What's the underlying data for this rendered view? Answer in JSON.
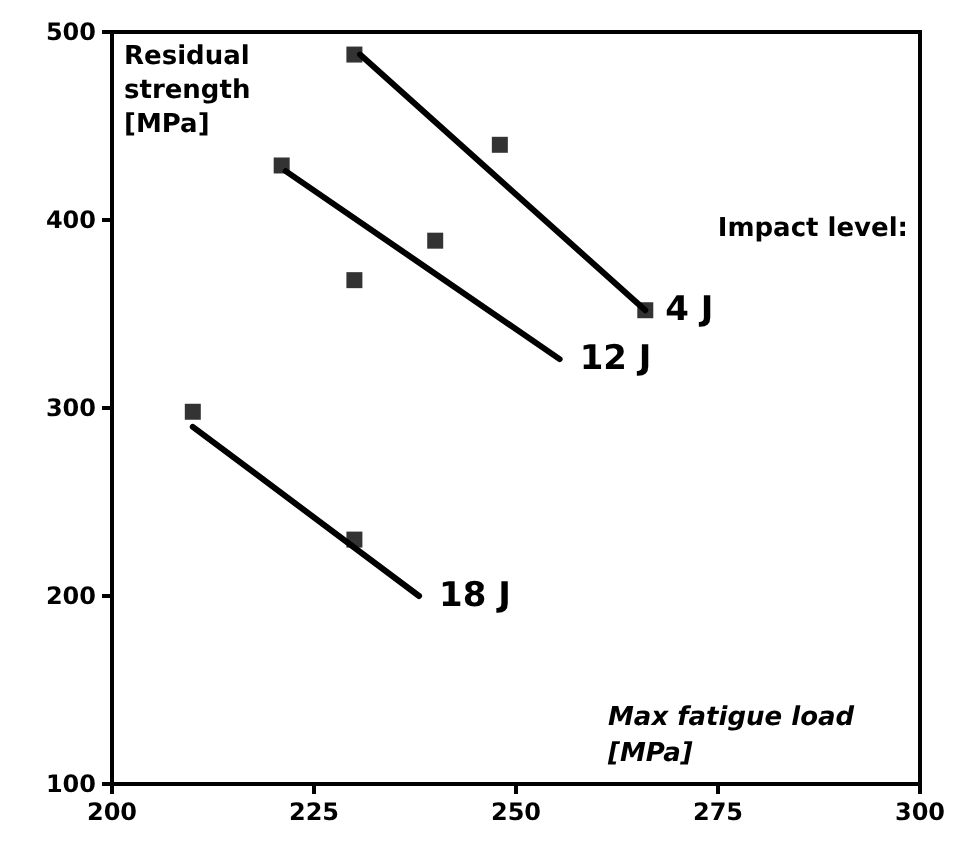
{
  "chart_data": {
    "type": "scatter",
    "xlabel": "Max fatigue load [MPa]",
    "ylabel": "Residual strength [MPa]",
    "annotations": [
      "Impact level:"
    ],
    "xlim": [
      200,
      300
    ],
    "xticks": [
      200,
      225,
      250,
      275,
      300
    ],
    "ylim": [
      100,
      500
    ],
    "yticks": [
      100,
      200,
      300,
      400,
      500
    ],
    "grid": false,
    "legend": false,
    "series": [
      {
        "marker": "square",
        "color": "#000000",
        "x": [
          230,
          248,
          266,
          221,
          230,
          240,
          210,
          230
        ],
        "values": [
          488,
          440,
          352,
          429,
          368,
          389,
          298,
          230
        ]
      },
      {
        "type": "line",
        "marker": "none",
        "name": "4 J",
        "color": "#000000",
        "x": [
          230.7,
          266
        ],
        "values": [
          488,
          352
        ]
      },
      {
        "type": "line",
        "marker": "none",
        "name": "12 J",
        "color": "#000000",
        "x": [
          221.5,
          255.4
        ],
        "values": [
          426,
          326
        ]
      },
      {
        "type": "line",
        "marker": "none",
        "name": "18 J",
        "color": "#000000",
        "x": [
          210,
          238
        ],
        "values": [
          290,
          200
        ]
      }
    ]
  }
}
